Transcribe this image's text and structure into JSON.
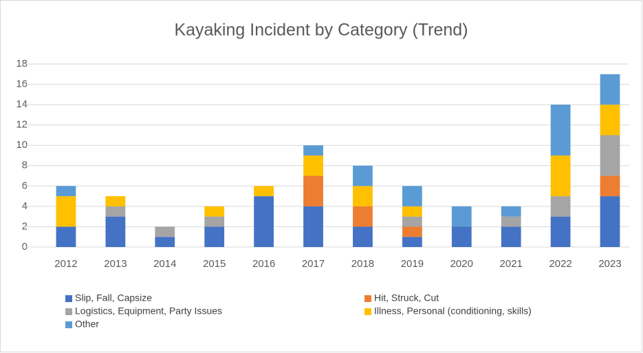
{
  "chart_data": {
    "type": "bar",
    "stacked": true,
    "title": "Kayaking Incident by Category (Trend)",
    "categories": [
      "2012",
      "2013",
      "2014",
      "2015",
      "2016",
      "2017",
      "2018",
      "2019",
      "2020",
      "2021",
      "2022",
      "2023"
    ],
    "series": [
      {
        "name": "Slip, Fall, Capsize",
        "color": "#4472c4",
        "values": [
          2,
          3,
          1,
          2,
          5,
          4,
          2,
          1,
          2,
          2,
          3,
          5
        ]
      },
      {
        "name": "Hit, Struck, Cut",
        "color": "#ed7d31",
        "values": [
          0,
          0,
          0,
          0,
          0,
          3,
          2,
          1,
          0,
          0,
          0,
          2
        ]
      },
      {
        "name": "Logistics, Equipment, Party Issues",
        "color": "#a5a5a5",
        "values": [
          0,
          1,
          1,
          1,
          0,
          0,
          0,
          1,
          0,
          1,
          2,
          4
        ]
      },
      {
        "name": "Illness, Personal (conditioning, skills)",
        "color": "#ffc000",
        "values": [
          3,
          1,
          0,
          1,
          1,
          2,
          2,
          1,
          0,
          0,
          4,
          3
        ]
      },
      {
        "name": "Other",
        "color": "#5b9bd5",
        "values": [
          1,
          0,
          0,
          0,
          0,
          1,
          2,
          2,
          2,
          1,
          5,
          3
        ]
      }
    ],
    "ylim": [
      0,
      18
    ],
    "yticks": [
      0,
      2,
      4,
      6,
      8,
      10,
      12,
      14,
      16,
      18
    ],
    "grid": true,
    "legend": "bottom"
  }
}
